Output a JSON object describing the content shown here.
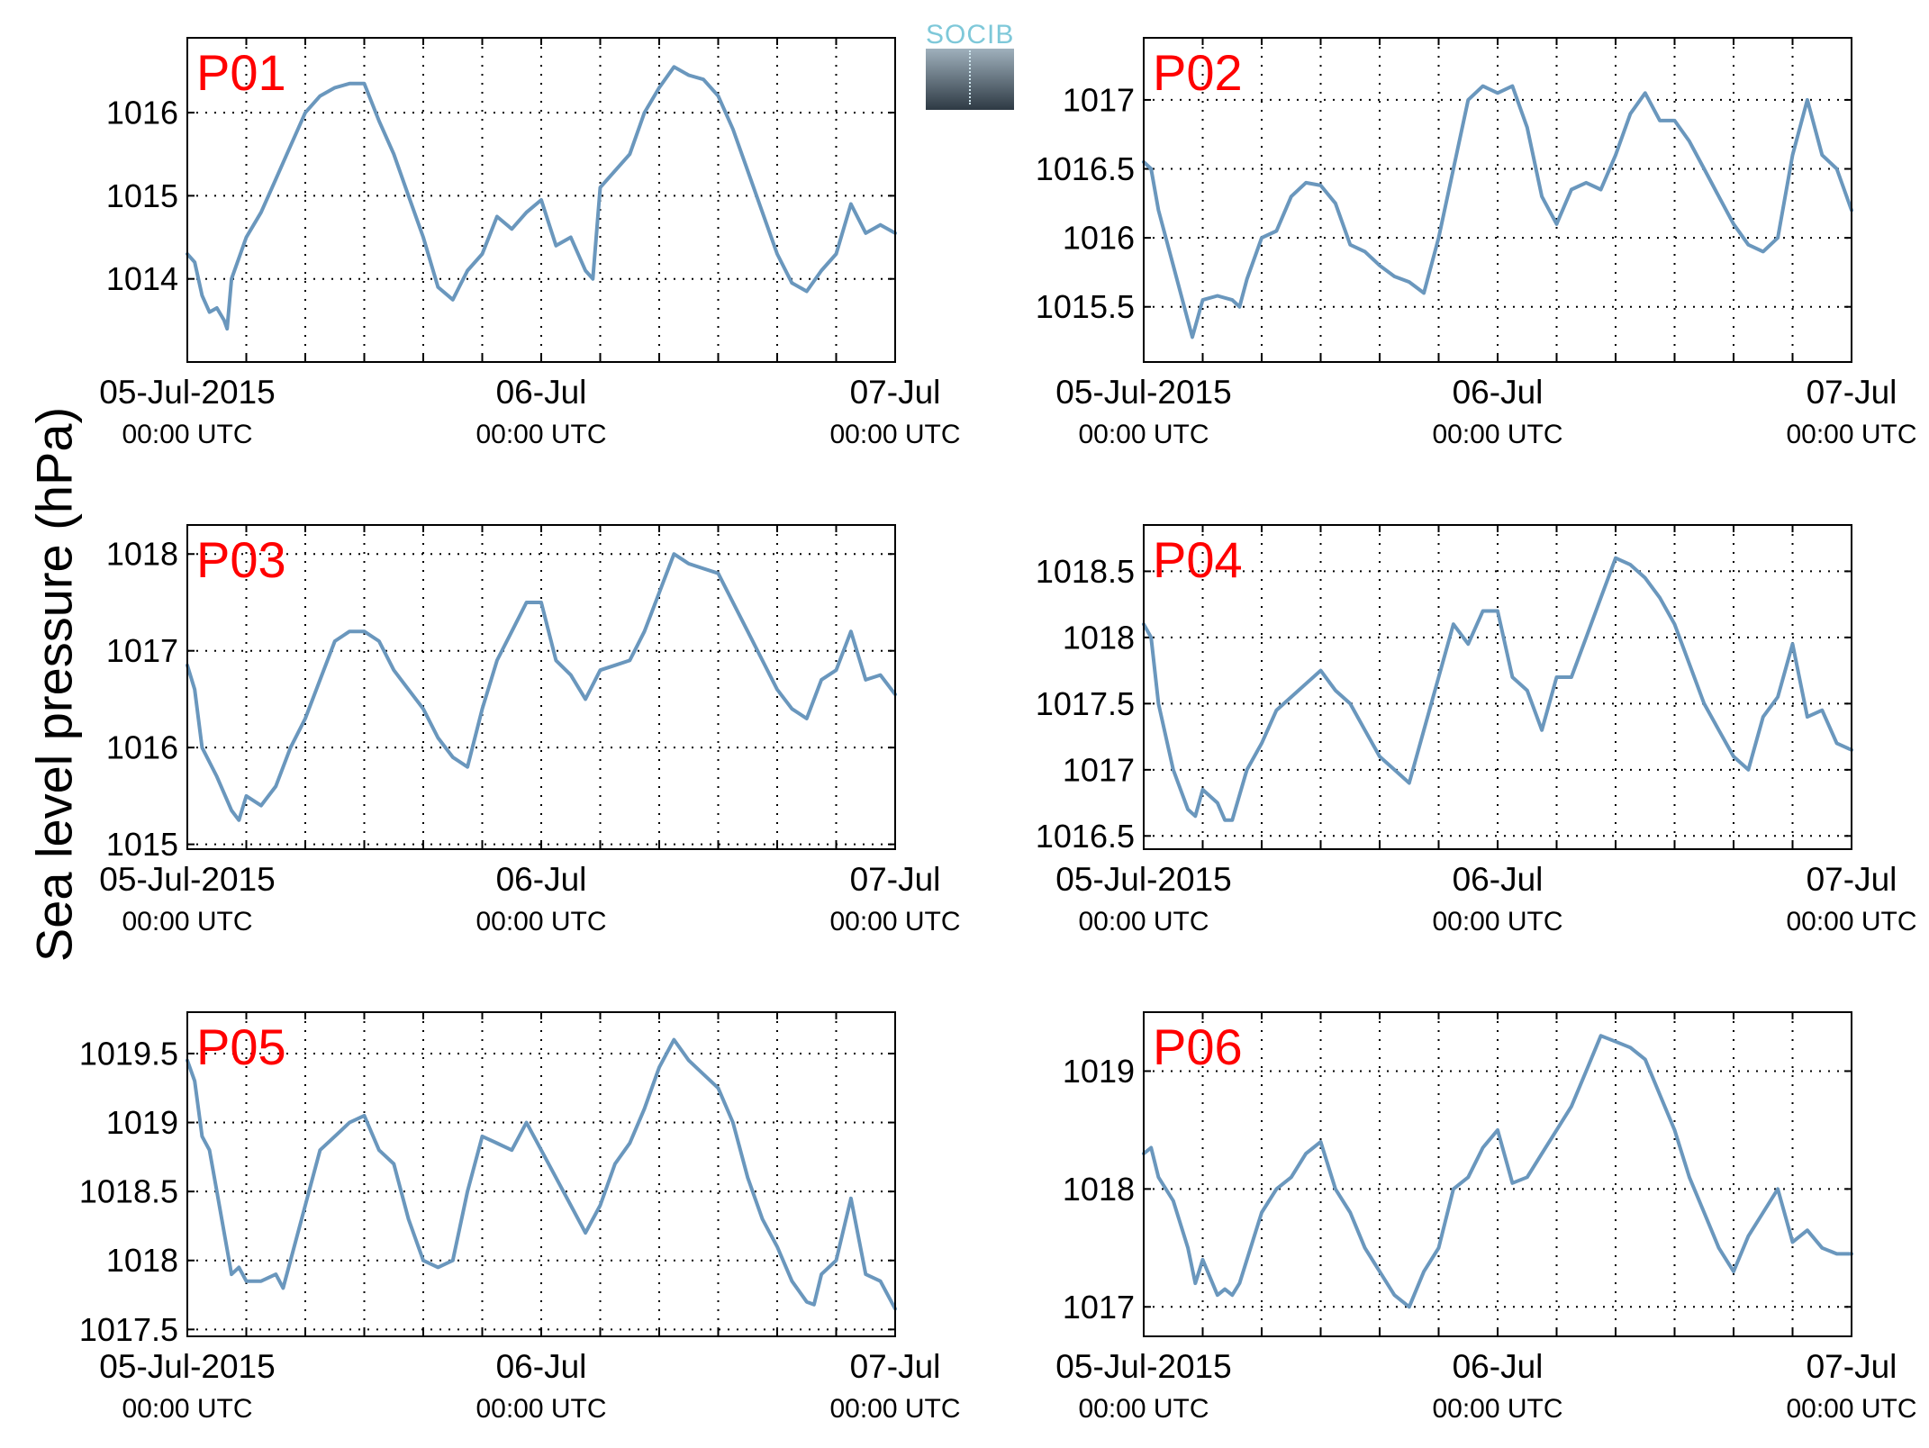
{
  "figure": {
    "ylabel": "Sea level pressure (hPa)",
    "logo_text": "SOCIB",
    "line_color": "#6a97bd",
    "panel_label_color": "#ff0000"
  },
  "chart_data": [
    {
      "type": "line",
      "label": "P01",
      "xlim": [
        0,
        48
      ],
      "xticks": [
        0,
        24,
        48
      ],
      "xticklabels": [
        [
          "05-Jul-2015",
          "00:00 UTC"
        ],
        [
          "06-Jul",
          "00:00 UTC"
        ],
        [
          "07-Jul",
          "00:00 UTC"
        ]
      ],
      "ylim": [
        1013.0,
        1016.9
      ],
      "yticks": [
        1014,
        1015,
        1016
      ],
      "yticklabels": [
        "1014",
        "1015",
        "1016"
      ],
      "grid": true,
      "x": [
        0,
        0.5,
        1,
        1.5,
        2,
        2.5,
        2.7,
        3,
        4,
        5,
        6,
        7,
        8,
        9,
        10,
        11,
        12,
        13,
        14,
        15,
        16,
        17,
        18,
        19,
        20,
        21,
        22,
        23,
        24,
        25,
        26,
        27,
        27.5,
        28,
        29,
        30,
        31,
        32,
        33,
        34,
        35,
        36,
        37,
        38,
        39,
        40,
        41,
        42,
        43,
        44,
        45,
        46,
        47,
        48
      ],
      "y": [
        1014.3,
        1014.2,
        1013.8,
        1013.6,
        1013.65,
        1013.5,
        1013.4,
        1014.0,
        1014.5,
        1014.8,
        1015.2,
        1015.6,
        1016.0,
        1016.2,
        1016.3,
        1016.35,
        1016.35,
        1015.9,
        1015.5,
        1015.0,
        1014.5,
        1013.9,
        1013.75,
        1014.1,
        1014.3,
        1014.75,
        1014.6,
        1014.8,
        1014.95,
        1014.4,
        1014.5,
        1014.1,
        1014.0,
        1015.1,
        1015.3,
        1015.5,
        1016.0,
        1016.3,
        1016.55,
        1016.45,
        1016.4,
        1016.2,
        1015.8,
        1015.3,
        1014.8,
        1014.3,
        1013.95,
        1013.85,
        1014.1,
        1014.3,
        1014.9,
        1014.55,
        1014.65,
        1014.55
      ]
    },
    {
      "type": "line",
      "label": "P02",
      "xlim": [
        0,
        48
      ],
      "xticks": [
        0,
        24,
        48
      ],
      "xticklabels": [
        [
          "05-Jul-2015",
          "00:00 UTC"
        ],
        [
          "06-Jul",
          "00:00 UTC"
        ],
        [
          "07-Jul",
          "00:00 UTC"
        ]
      ],
      "ylim": [
        1015.1,
        1017.45
      ],
      "yticks": [
        1015.5,
        1016,
        1016.5,
        1017
      ],
      "yticklabels": [
        "1015.5",
        "1016",
        "1016.5",
        "1017"
      ],
      "grid": true,
      "x": [
        0,
        0.5,
        1,
        2,
        3,
        3.3,
        4,
        5,
        6,
        6.5,
        7,
        8,
        9,
        10,
        11,
        12,
        13,
        14,
        15,
        16,
        17,
        18,
        19,
        20,
        21,
        21.5,
        22,
        23,
        24,
        25,
        26,
        27,
        28,
        29,
        30,
        31,
        32,
        33,
        34,
        35,
        36,
        37,
        38,
        39,
        40,
        41,
        42,
        43,
        44,
        45,
        46,
        47,
        48
      ],
      "y": [
        1016.55,
        1016.5,
        1016.2,
        1015.8,
        1015.4,
        1015.28,
        1015.55,
        1015.58,
        1015.55,
        1015.5,
        1015.7,
        1016.0,
        1016.05,
        1016.3,
        1016.4,
        1016.38,
        1016.25,
        1015.95,
        1015.9,
        1015.8,
        1015.72,
        1015.68,
        1015.6,
        1016.0,
        1016.5,
        1016.75,
        1017.0,
        1017.1,
        1017.05,
        1017.1,
        1016.8,
        1016.3,
        1016.1,
        1016.35,
        1016.4,
        1016.35,
        1016.6,
        1016.9,
        1017.05,
        1016.85,
        1016.85,
        1016.7,
        1016.5,
        1016.3,
        1016.1,
        1015.95,
        1015.9,
        1016.0,
        1016.6,
        1017.0,
        1016.6,
        1016.5,
        1016.2
      ]
    },
    {
      "type": "line",
      "label": "P03",
      "xlim": [
        0,
        48
      ],
      "xticks": [
        0,
        24,
        48
      ],
      "xticklabels": [
        [
          "05-Jul-2015",
          "00:00 UTC"
        ],
        [
          "06-Jul",
          "00:00 UTC"
        ],
        [
          "07-Jul",
          "00:00 UTC"
        ]
      ],
      "ylim": [
        1014.95,
        1018.3
      ],
      "yticks": [
        1015,
        1016,
        1017,
        1018
      ],
      "yticklabels": [
        "1015",
        "1016",
        "1017",
        "1018"
      ],
      "grid": true,
      "x": [
        0,
        0.5,
        1,
        2,
        3,
        3.5,
        4,
        5,
        6,
        7,
        8,
        9,
        10,
        11,
        12,
        13,
        14,
        15,
        16,
        17,
        18,
        19,
        20,
        21,
        22,
        23,
        24,
        25,
        26,
        27,
        28,
        29,
        30,
        31,
        32,
        33,
        34,
        35,
        36,
        37,
        38,
        39,
        40,
        41,
        42,
        43,
        44,
        45,
        46,
        47,
        48
      ],
      "y": [
        1016.85,
        1016.6,
        1016.0,
        1015.7,
        1015.35,
        1015.25,
        1015.5,
        1015.4,
        1015.6,
        1016.0,
        1016.3,
        1016.7,
        1017.1,
        1017.2,
        1017.2,
        1017.1,
        1016.8,
        1016.6,
        1016.4,
        1016.1,
        1015.9,
        1015.8,
        1016.4,
        1016.9,
        1017.2,
        1017.5,
        1017.5,
        1016.9,
        1016.75,
        1016.5,
        1016.8,
        1016.85,
        1016.9,
        1017.2,
        1017.6,
        1018.0,
        1017.9,
        1017.85,
        1017.8,
        1017.5,
        1017.2,
        1016.9,
        1016.6,
        1016.4,
        1016.3,
        1016.7,
        1016.8,
        1017.2,
        1016.7,
        1016.75,
        1016.55
      ]
    },
    {
      "type": "line",
      "label": "P04",
      "xlim": [
        0,
        48
      ],
      "xticks": [
        0,
        24,
        48
      ],
      "xticklabels": [
        [
          "05-Jul-2015",
          "00:00 UTC"
        ],
        [
          "06-Jul",
          "00:00 UTC"
        ],
        [
          "07-Jul",
          "00:00 UTC"
        ]
      ],
      "ylim": [
        1016.4,
        1018.85
      ],
      "yticks": [
        1016.5,
        1017,
        1017.5,
        1018,
        1018.5
      ],
      "yticklabels": [
        "1016.5",
        "1017",
        "1017.5",
        "1018",
        "1018.5"
      ],
      "grid": true,
      "x": [
        0,
        0.5,
        1,
        2,
        3,
        3.5,
        4,
        5,
        5.5,
        6,
        7,
        8,
        9,
        10,
        11,
        12,
        13,
        14,
        15,
        16,
        17,
        18,
        19,
        20,
        21,
        22,
        23,
        24,
        25,
        26,
        27,
        28,
        29,
        30,
        31,
        32,
        33,
        34,
        35,
        36,
        37,
        38,
        39,
        40,
        41,
        42,
        43,
        44,
        45,
        46,
        47,
        48
      ],
      "y": [
        1018.1,
        1018.0,
        1017.5,
        1017.0,
        1016.7,
        1016.65,
        1016.85,
        1016.75,
        1016.62,
        1016.62,
        1017.0,
        1017.2,
        1017.45,
        1017.55,
        1017.65,
        1017.75,
        1017.6,
        1017.5,
        1017.3,
        1017.1,
        1017.0,
        1016.9,
        1017.3,
        1017.7,
        1018.1,
        1017.95,
        1018.2,
        1018.2,
        1017.7,
        1017.6,
        1017.3,
        1017.7,
        1017.7,
        1018.0,
        1018.3,
        1018.6,
        1018.55,
        1018.45,
        1018.3,
        1018.1,
        1017.8,
        1017.5,
        1017.3,
        1017.1,
        1017.0,
        1017.4,
        1017.55,
        1017.95,
        1017.4,
        1017.45,
        1017.2,
        1017.15
      ]
    },
    {
      "type": "line",
      "label": "P05",
      "xlim": [
        0,
        48
      ],
      "xticks": [
        0,
        24,
        48
      ],
      "xticklabels": [
        [
          "05-Jul-2015",
          "00:00 UTC"
        ],
        [
          "06-Jul",
          "00:00 UTC"
        ],
        [
          "07-Jul",
          "00:00 UTC"
        ]
      ],
      "ylim": [
        1017.45,
        1019.8
      ],
      "yticks": [
        1017.5,
        1018,
        1018.5,
        1019,
        1019.5
      ],
      "yticklabels": [
        "1017.5",
        "1018",
        "1018.5",
        "1019",
        "1019.5"
      ],
      "grid": true,
      "x": [
        0,
        0.5,
        1,
        1.5,
        2,
        3,
        3.5,
        4,
        5,
        6,
        6.5,
        7,
        8,
        9,
        10,
        11,
        12,
        13,
        14,
        15,
        16,
        17,
        18,
        19,
        20,
        21,
        22,
        23,
        24,
        25,
        26,
        27,
        28,
        29,
        30,
        31,
        32,
        33,
        34,
        35,
        36,
        37,
        38,
        39,
        40,
        41,
        42,
        42.5,
        43,
        44,
        45,
        46,
        47,
        48
      ],
      "y": [
        1019.45,
        1019.3,
        1018.9,
        1018.8,
        1018.5,
        1017.9,
        1017.95,
        1017.85,
        1017.85,
        1017.9,
        1017.8,
        1018.0,
        1018.4,
        1018.8,
        1018.9,
        1019.0,
        1019.05,
        1018.8,
        1018.7,
        1018.3,
        1018.0,
        1017.95,
        1018.0,
        1018.5,
        1018.9,
        1018.85,
        1018.8,
        1019.0,
        1018.8,
        1018.6,
        1018.4,
        1018.2,
        1018.4,
        1018.7,
        1018.85,
        1019.1,
        1019.4,
        1019.6,
        1019.45,
        1019.35,
        1019.25,
        1019.0,
        1018.6,
        1018.3,
        1018.1,
        1017.85,
        1017.7,
        1017.68,
        1017.9,
        1018.0,
        1018.45,
        1017.9,
        1017.85,
        1017.65
      ]
    },
    {
      "type": "line",
      "label": "P06",
      "xlim": [
        0,
        48
      ],
      "xticks": [
        0,
        24,
        48
      ],
      "xticklabels": [
        [
          "05-Jul-2015",
          "00:00 UTC"
        ],
        [
          "06-Jul",
          "00:00 UTC"
        ],
        [
          "07-Jul",
          "00:00 UTC"
        ]
      ],
      "ylim": [
        1016.75,
        1019.5
      ],
      "yticks": [
        1017,
        1018,
        1019
      ],
      "yticklabels": [
        "1017",
        "1018",
        "1019"
      ],
      "grid": true,
      "x": [
        0,
        0.5,
        1,
        2,
        3,
        3.5,
        4,
        5,
        5.5,
        6,
        6.5,
        7,
        8,
        9,
        10,
        11,
        12,
        13,
        14,
        15,
        16,
        17,
        18,
        19,
        19.5,
        20,
        21,
        22,
        23,
        24,
        25,
        26,
        27,
        28,
        29,
        30,
        31,
        32,
        33,
        34,
        35,
        36,
        37,
        38,
        39,
        40,
        41,
        42,
        43,
        44,
        45,
        46,
        47,
        48
      ],
      "y": [
        1018.3,
        1018.35,
        1018.1,
        1017.9,
        1017.5,
        1017.2,
        1017.4,
        1017.1,
        1017.15,
        1017.1,
        1017.2,
        1017.4,
        1017.8,
        1018.0,
        1018.1,
        1018.3,
        1018.4,
        1018.0,
        1017.8,
        1017.5,
        1017.3,
        1017.1,
        1017.0,
        1017.3,
        1017.4,
        1017.5,
        1018.0,
        1018.1,
        1018.35,
        1018.5,
        1018.05,
        1018.1,
        1018.3,
        1018.5,
        1018.7,
        1019.0,
        1019.3,
        1019.25,
        1019.2,
        1019.1,
        1018.8,
        1018.5,
        1018.1,
        1017.8,
        1017.5,
        1017.3,
        1017.6,
        1017.8,
        1018.0,
        1017.55,
        1017.65,
        1017.5,
        1017.45,
        1017.45
      ]
    }
  ]
}
